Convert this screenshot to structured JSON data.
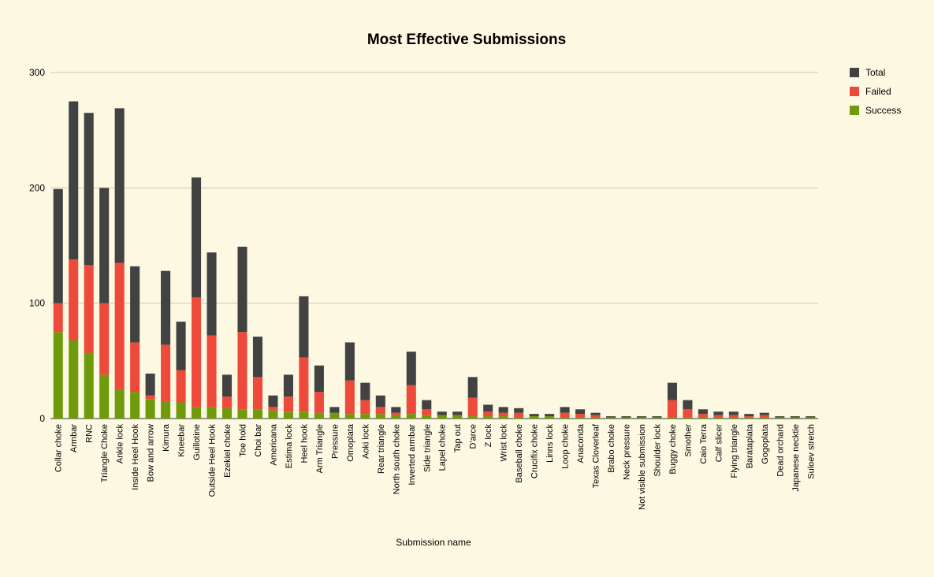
{
  "chart_data": {
    "type": "bar",
    "stacked": true,
    "title": "Most Effective Submissions",
    "xlabel": "Submission name",
    "ylabel": "",
    "ylim": [
      0,
      300
    ],
    "yticks": [
      0,
      100,
      200,
      300
    ],
    "grid": true,
    "legend_position": "right",
    "categories": [
      "Collar choke",
      "Armbar",
      "RNC",
      "Triangle Choke",
      "Ankle lock",
      "Inside Heel Hook",
      "Bow and arrow",
      "Kimura",
      "Kneebar",
      "Guillotine",
      "Outside Heel Hook",
      "Ezekiel choke",
      "Toe hold",
      "Choi bar",
      "Americana",
      "Estima lock",
      "Heel hook",
      "Arm Triangle",
      "Pressure",
      "Omoplata",
      "Aoki lock",
      "Rear triangle",
      "North south choke",
      "Inverted armbar",
      "Side triangle",
      "Lapel choke",
      "Tap out",
      "D'arce",
      "Z lock",
      "Wrist lock",
      "Baseball choke",
      "Crucifix choke",
      "Linns lock",
      "Loop choke",
      "Anaconda",
      "Texas Cloverleaf",
      "Brabo choke",
      "Neck pressure",
      "Not visible submission",
      "Shoulder lock",
      "Buggy choke",
      "Smother",
      "Caio Terra",
      "Calf slicer",
      "Flying triangle",
      "Barataplata",
      "Gogoplata",
      "Dead orchard",
      "Japanese necktie",
      "Suloev stretch"
    ],
    "series": [
      {
        "name": "Success",
        "color": "#6e9a0c",
        "values": [
          75,
          68,
          57,
          38,
          25,
          23,
          17,
          15,
          14,
          10,
          10,
          9,
          8,
          8,
          7,
          6,
          6,
          5,
          5,
          4,
          4,
          4,
          3,
          4,
          3,
          3,
          3,
          2,
          2,
          2,
          1,
          2,
          2,
          1,
          1,
          1,
          1,
          1,
          1,
          1,
          1,
          1,
          1,
          1,
          1,
          1,
          1,
          1,
          1,
          1
        ]
      },
      {
        "name": "Failed",
        "color": "#ed4a3c",
        "values": [
          25,
          70,
          76,
          62,
          110,
          43,
          3,
          49,
          28,
          95,
          62,
          10,
          67,
          28,
          3,
          13,
          47,
          18,
          0,
          29,
          12,
          6,
          2,
          25,
          5,
          0,
          0,
          16,
          4,
          3,
          4,
          0,
          0,
          4,
          3,
          2,
          0,
          0,
          0,
          0,
          15,
          7,
          3,
          2,
          2,
          1,
          2,
          0,
          0,
          0
        ]
      },
      {
        "name": "Total",
        "color": "#424242",
        "values": [
          99,
          137,
          132,
          100,
          134,
          66,
          19,
          64,
          42,
          104,
          72,
          19,
          74,
          35,
          10,
          19,
          53,
          23,
          5,
          33,
          15,
          10,
          5,
          29,
          8,
          3,
          3,
          18,
          6,
          5,
          4,
          2,
          2,
          5,
          4,
          2,
          1,
          1,
          1,
          1,
          15,
          8,
          4,
          3,
          3,
          2,
          2,
          1,
          1,
          1
        ]
      }
    ]
  }
}
